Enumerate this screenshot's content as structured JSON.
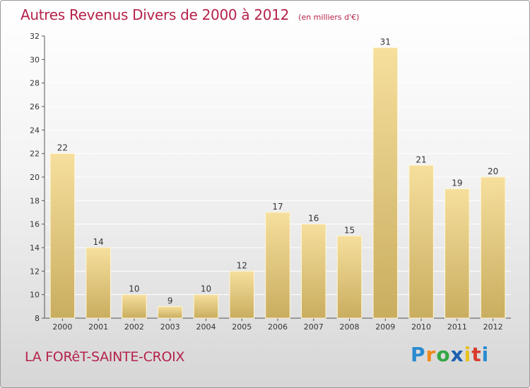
{
  "title": "Autres Revenus Divers de 2000 à 2012",
  "subtitle": "(en milliers d'€)",
  "place": "LA FORêT-SAINTE-CROIX",
  "logo": {
    "letters": [
      "P",
      "r",
      "o",
      "x",
      "i",
      "t",
      "i"
    ],
    "colors": [
      "#2a8bd0",
      "#f08a1c",
      "#33a844",
      "#1b5fb0",
      "#e8c21c",
      "#d93b2c",
      "#2a8bd0"
    ]
  },
  "colors": {
    "title": "#b5224a",
    "bar_light": "#f6df9d",
    "bar_dark": "#c9ad5f",
    "grid": "#ffffff"
  },
  "chart_data": {
    "type": "bar",
    "title": "Autres Revenus Divers de 2000 à 2012",
    "subtitle": "(en milliers d'€)",
    "categories": [
      "2000",
      "2001",
      "2002",
      "2003",
      "2004",
      "2005",
      "2006",
      "2007",
      "2008",
      "2009",
      "2010",
      "2011",
      "2012"
    ],
    "values": [
      22,
      14,
      10,
      9,
      10,
      12,
      17,
      16,
      15,
      31,
      21,
      19,
      20
    ],
    "ylim": [
      8,
      32
    ],
    "yticks": [
      8,
      10,
      12,
      14,
      16,
      18,
      20,
      22,
      24,
      26,
      28,
      30,
      32
    ],
    "grid": true,
    "xlabel": "",
    "ylabel": ""
  }
}
